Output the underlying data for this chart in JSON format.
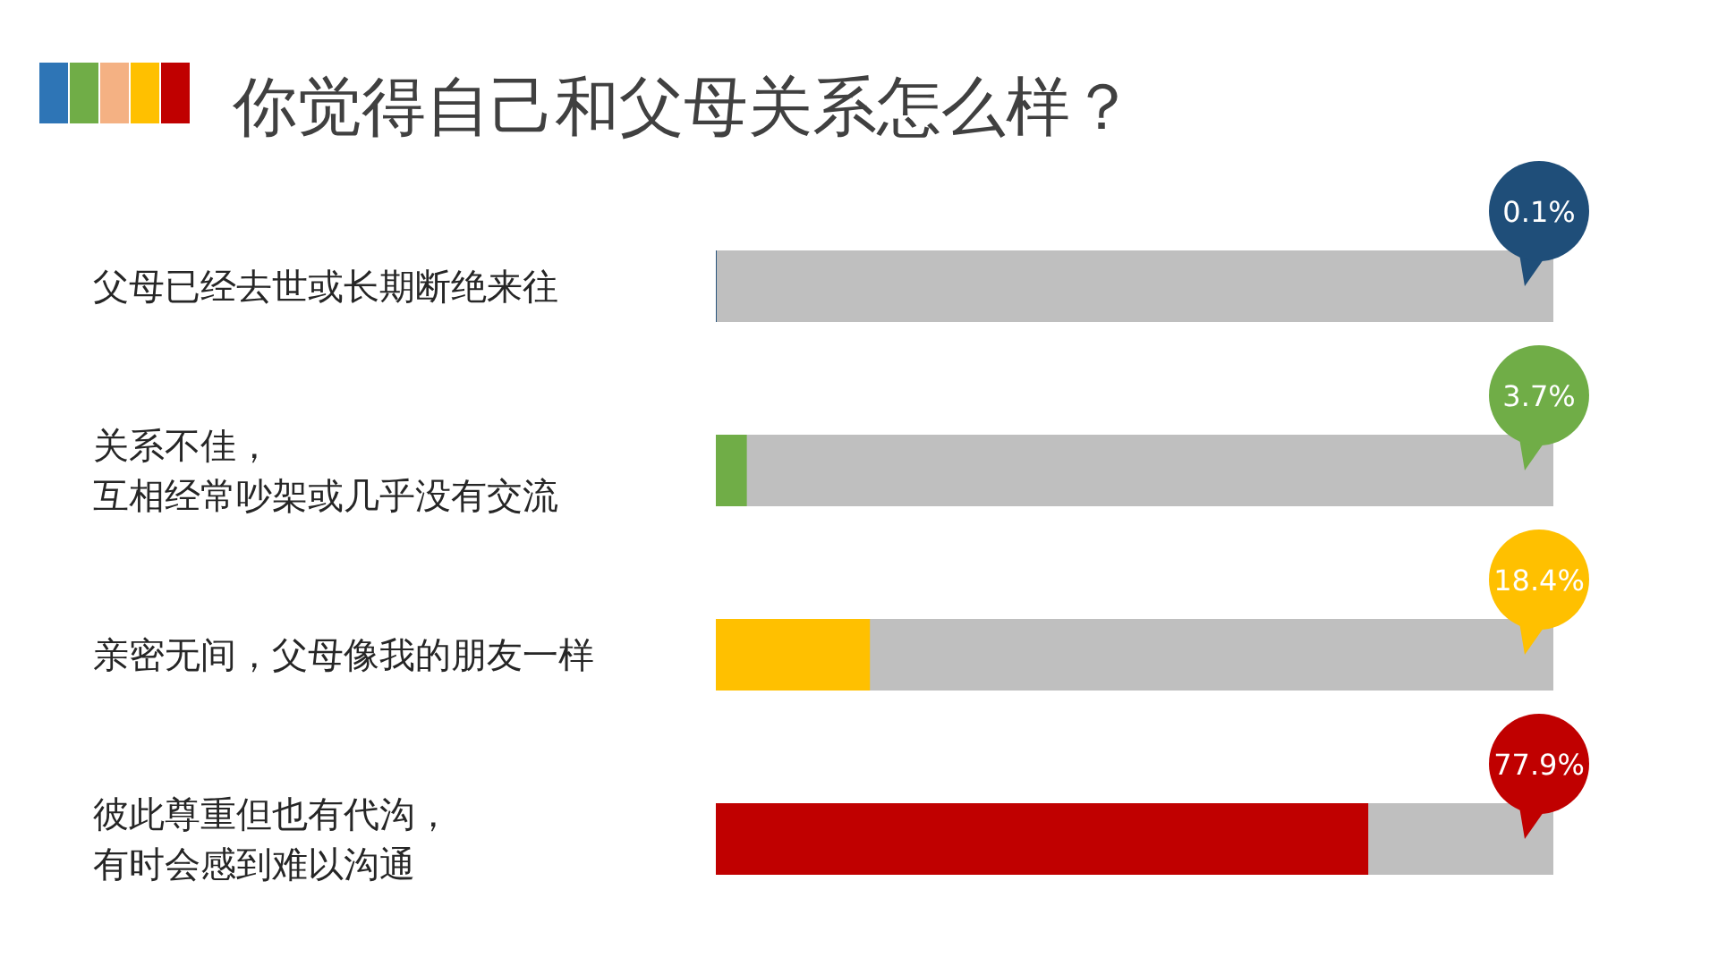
{
  "chart_data": {
    "type": "bar",
    "orientation": "horizontal",
    "title": "你觉得自己和父母关系怎么样？",
    "categories": [
      "父母已经去世或长期断绝来往",
      "关系不佳，互相经常吵架或几乎没有交流",
      "亲密无间，父母像我的朋友一样",
      "彼此尊重但也有代沟，有时会感到难以沟通"
    ],
    "values": [
      0.1,
      3.7,
      18.4,
      77.9
    ],
    "colors": [
      "#1f4e79",
      "#70ad47",
      "#ffc000",
      "#c00000"
    ],
    "value_labels": [
      "0.1%",
      "3.7%",
      "18.4%",
      "77.9%"
    ],
    "xlim": [
      0,
      100
    ]
  }
}
